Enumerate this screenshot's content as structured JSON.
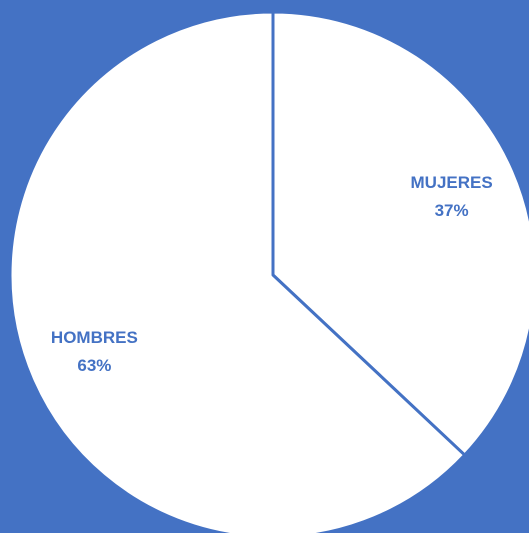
{
  "chart_data": {
    "type": "pie",
    "categories": [
      "MUJERES",
      "HOMBRES"
    ],
    "values": [
      37,
      63
    ],
    "value_labels": [
      "37%",
      "63%"
    ],
    "colors": [
      "#ffffff",
      "#ffffff"
    ],
    "edge_color": "#4472c4",
    "label_color": "#4472c4",
    "background": "#4472c4"
  }
}
